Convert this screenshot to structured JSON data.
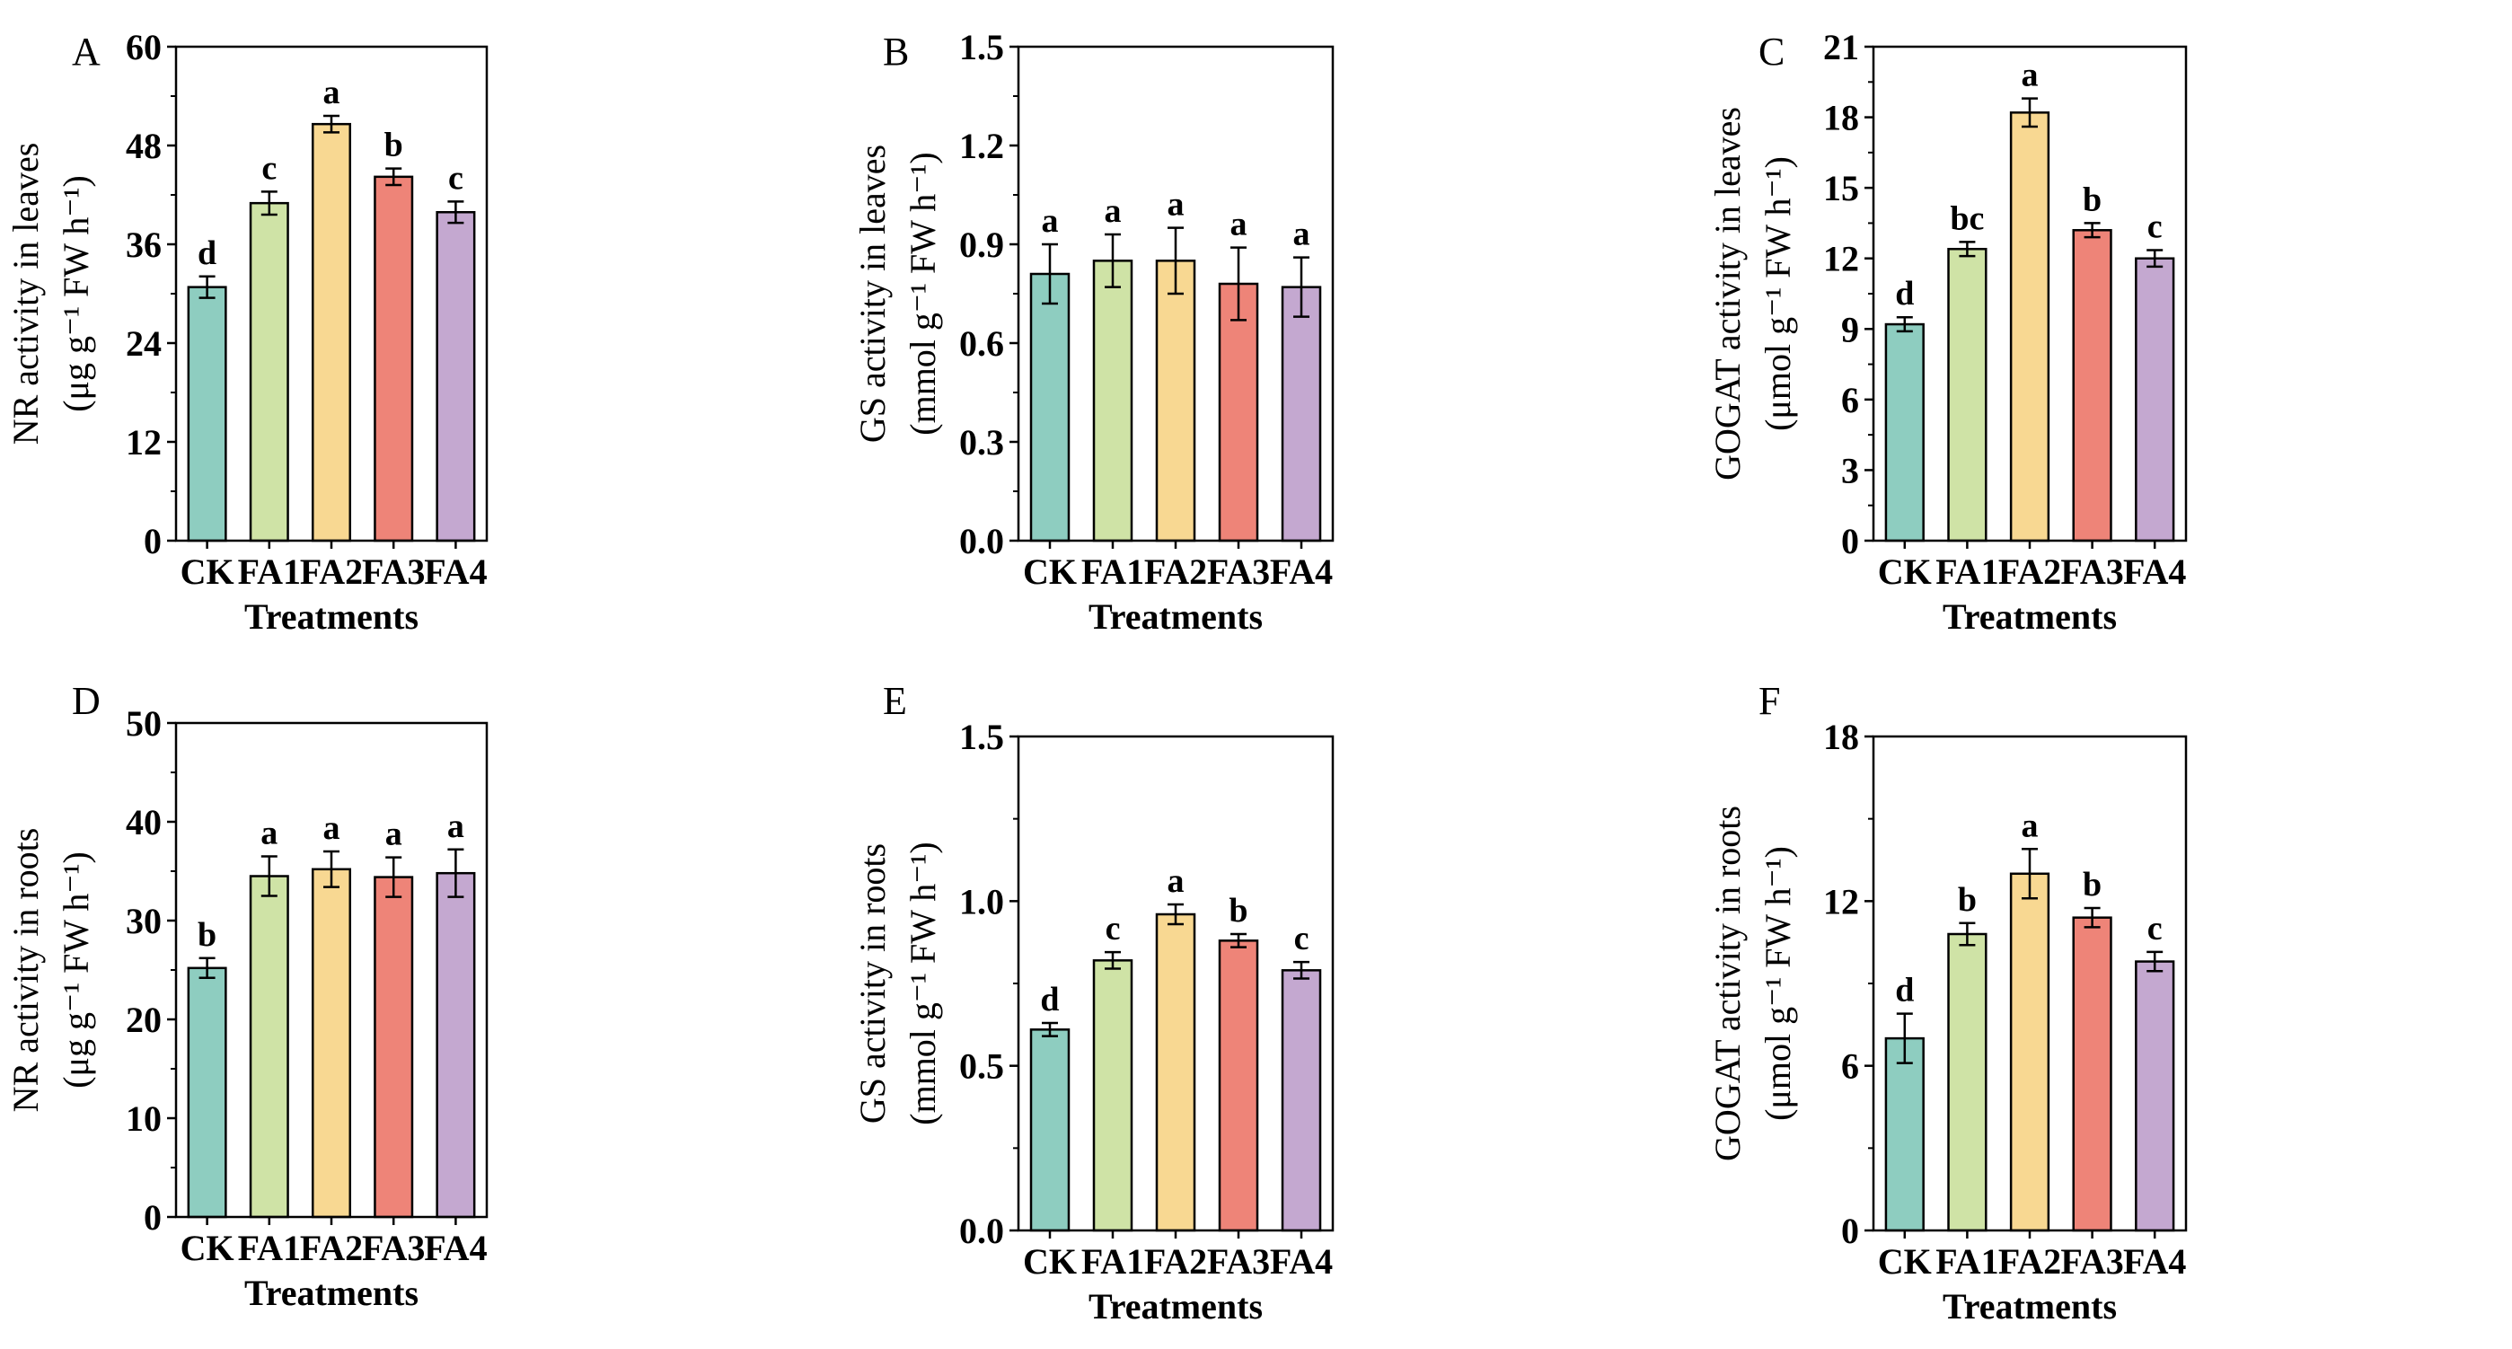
{
  "chart_data": [
    {
      "type": "bar",
      "panel": "A",
      "categories": [
        "CK",
        "FA1",
        "FA2",
        "FA3",
        "FA4"
      ],
      "values": [
        30.8,
        41.0,
        50.6,
        44.2,
        39.9
      ],
      "errors": [
        1.3,
        1.4,
        1.0,
        1.0,
        1.3
      ],
      "letters": [
        "d",
        "c",
        "a",
        "b",
        "c"
      ],
      "xlabel": "Treatments",
      "ylabel_line1": "NR activity in leaves",
      "ylabel_line2": "(μg g⁻¹ FW h⁻¹)",
      "ylim": [
        0,
        60
      ],
      "yticks": [
        "0",
        "12",
        "24",
        "36",
        "48",
        "60"
      ]
    },
    {
      "type": "bar",
      "panel": "B",
      "categories": [
        "CK",
        "FA1",
        "FA2",
        "FA3",
        "FA4"
      ],
      "values": [
        0.81,
        0.85,
        0.85,
        0.78,
        0.77
      ],
      "errors": [
        0.09,
        0.08,
        0.1,
        0.11,
        0.09
      ],
      "letters": [
        "a",
        "a",
        "a",
        "a",
        "a"
      ],
      "xlabel": "Treatments",
      "ylabel_line1": "GS activity in leaves",
      "ylabel_line2": "(mmol g⁻¹ FW h⁻¹)",
      "ylim": [
        0,
        1.5
      ],
      "yticks": [
        "0.0",
        "0.3",
        "0.6",
        "0.9",
        "1.2",
        "1.5"
      ]
    },
    {
      "type": "bar",
      "panel": "C",
      "categories": [
        "CK",
        "FA1",
        "FA2",
        "FA3",
        "FA4"
      ],
      "values": [
        9.2,
        12.4,
        18.2,
        13.2,
        12.0
      ],
      "errors": [
        0.3,
        0.3,
        0.6,
        0.3,
        0.35
      ],
      "letters": [
        "d",
        "bc",
        "a",
        "b",
        "c"
      ],
      "xlabel": "Treatments",
      "ylabel_line1": "GOGAT activity in leaves",
      "ylabel_line2": "(μmol g⁻¹ FW h⁻¹)",
      "ylim": [
        0,
        21
      ],
      "yticks": [
        "0",
        "3",
        "6",
        "9",
        "12",
        "15",
        "18",
        "21"
      ]
    },
    {
      "type": "bar",
      "panel": "D",
      "categories": [
        "CK",
        "FA1",
        "FA2",
        "FA3",
        "FA4"
      ],
      "values": [
        25.2,
        34.5,
        35.2,
        34.4,
        34.8
      ],
      "errors": [
        1.0,
        2.0,
        1.8,
        2.0,
        2.4
      ],
      "letters": [
        "b",
        "a",
        "a",
        "a",
        "a"
      ],
      "xlabel": "Treatments",
      "ylabel_line1": "NR activity in roots",
      "ylabel_line2": "(μg g⁻¹ FW h⁻¹)",
      "ylim": [
        0,
        50
      ],
      "yticks": [
        "0",
        "10",
        "20",
        "30",
        "40",
        "50"
      ]
    },
    {
      "type": "bar",
      "panel": "E",
      "categories": [
        "CK",
        "FA1",
        "FA2",
        "FA3",
        "FA4"
      ],
      "values": [
        0.61,
        0.82,
        0.96,
        0.88,
        0.79
      ],
      "errors": [
        0.02,
        0.025,
        0.03,
        0.02,
        0.025
      ],
      "letters": [
        "d",
        "c",
        "a",
        "b",
        "c"
      ],
      "xlabel": "Treatments",
      "ylabel_line1": "GS activity in roots",
      "ylabel_line2": "(mmol g⁻¹ FW h⁻¹)",
      "ylim": [
        0,
        1.5
      ],
      "yticks": [
        "0.0",
        "0.5",
        "1.0",
        "1.5"
      ]
    },
    {
      "type": "bar",
      "panel": "F",
      "categories": [
        "CK",
        "FA1",
        "FA2",
        "FA3",
        "FA4"
      ],
      "values": [
        7.0,
        10.8,
        13.0,
        11.4,
        9.8
      ],
      "errors": [
        0.9,
        0.4,
        0.9,
        0.35,
        0.35
      ],
      "letters": [
        "d",
        "b",
        "a",
        "b",
        "c"
      ],
      "xlabel": "Treatments",
      "ylabel_line1": "GOGAT activity in roots",
      "ylabel_line2": "(μmol g⁻¹ FW h⁻¹)",
      "ylim": [
        0,
        18
      ],
      "yticks": [
        "0",
        "6",
        "12",
        "18"
      ]
    }
  ],
  "bar_colors": [
    "#8ecdc0",
    "#cfe3a6",
    "#f8d892",
    "#ee8478",
    "#c4a8d0"
  ]
}
